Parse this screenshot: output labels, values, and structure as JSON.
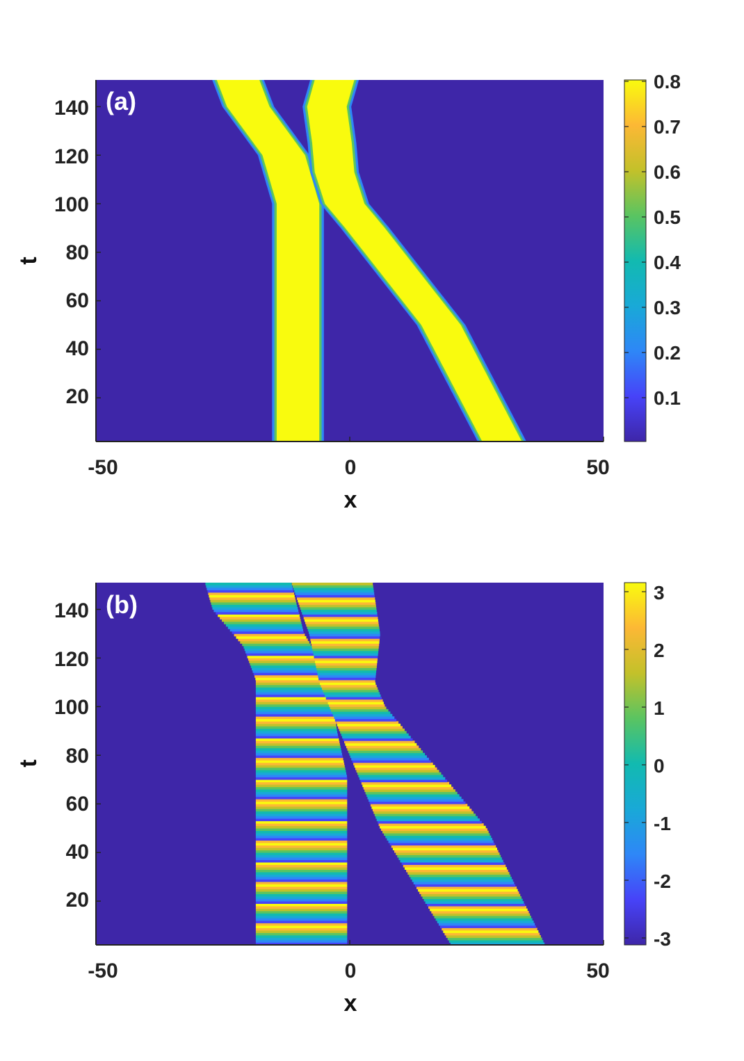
{
  "chart_data": [
    {
      "type": "heatmap",
      "panel_label": "(a)",
      "xlabel": "x",
      "ylabel": "t",
      "xlim": [
        -50,
        50
      ],
      "ylim": [
        2,
        151
      ],
      "xticks": [
        "-50",
        "0",
        "50"
      ],
      "yticks": [
        "20",
        "40",
        "60",
        "80",
        "100",
        "120",
        "140"
      ],
      "colorbar": {
        "range": [
          0.0,
          0.8
        ],
        "ticks": [
          "0.8",
          "0.7",
          "0.6",
          "0.5",
          "0.4",
          "0.3",
          "0.2",
          "0.1"
        ],
        "colormap": "parula"
      },
      "background_color": "#3e26a8",
      "peak_color": "#f9fb0e",
      "features": {
        "soliton_1": {
          "description": "stationary band",
          "path": [
            [
              2,
              -10.2
            ],
            [
              100,
              -10.2
            ],
            [
              120,
              -13
            ],
            [
              140,
              -20
            ],
            [
              151,
              -22
            ]
          ],
          "half_width": 4.2
        },
        "soliton_2": {
          "description": "moving band",
          "path": [
            [
              2,
              30
            ],
            [
              50,
              18
            ],
            [
              90,
              3
            ],
            [
              100,
              -1
            ],
            [
              113,
              -3
            ],
            [
              125,
              -3.5
            ],
            [
              140,
              -4.5
            ],
            [
              151,
              -3
            ]
          ],
          "half_width": 3.9
        }
      }
    },
    {
      "type": "heatmap",
      "panel_label": "(b)",
      "xlabel": "x",
      "ylabel": "t",
      "xlim": [
        -50,
        50
      ],
      "ylim": [
        2,
        151
      ],
      "xticks": [
        "-50",
        "0",
        "50"
      ],
      "yticks": [
        "20",
        "40",
        "60",
        "80",
        "100",
        "120",
        "140"
      ],
      "colorbar": {
        "range": [
          -3.14,
          3.14
        ],
        "ticks": [
          "3",
          "2",
          "1",
          "0",
          "-1",
          "-2",
          "-3"
        ],
        "colormap": "parula"
      },
      "background_color": "#3e26a8",
      "features": {
        "band_1": {
          "description": "stationary phase band",
          "left_path": [
            [
              2,
              -18.5
            ],
            [
              111,
              -18.5
            ],
            [
              125,
              -21
            ],
            [
              140,
              -27
            ],
            [
              151,
              -28.5
            ]
          ],
          "right_path": [
            [
              2,
              -0.5
            ],
            [
              71,
              -0.5
            ],
            [
              90,
              -2.5
            ],
            [
              113,
              -4
            ],
            [
              130,
              -9
            ],
            [
              151,
              -11.5
            ]
          ],
          "stripe_period_t": 8.5
        },
        "band_2": {
          "description": "moving phase band",
          "left_path": [
            [
              2,
              20
            ],
            [
              50,
              6
            ],
            [
              90,
              -2
            ],
            [
              110,
              -6
            ],
            [
              130,
              -8
            ],
            [
              151,
              -11.5
            ]
          ],
          "right_path": [
            [
              2,
              38.5
            ],
            [
              50,
              27
            ],
            [
              80,
              15
            ],
            [
              100,
              7
            ],
            [
              110,
              5
            ],
            [
              120,
              5.5
            ],
            [
              130,
              6
            ],
            [
              151,
              4.5
            ]
          ],
          "stripe_period_t": 8.5
        }
      }
    }
  ]
}
